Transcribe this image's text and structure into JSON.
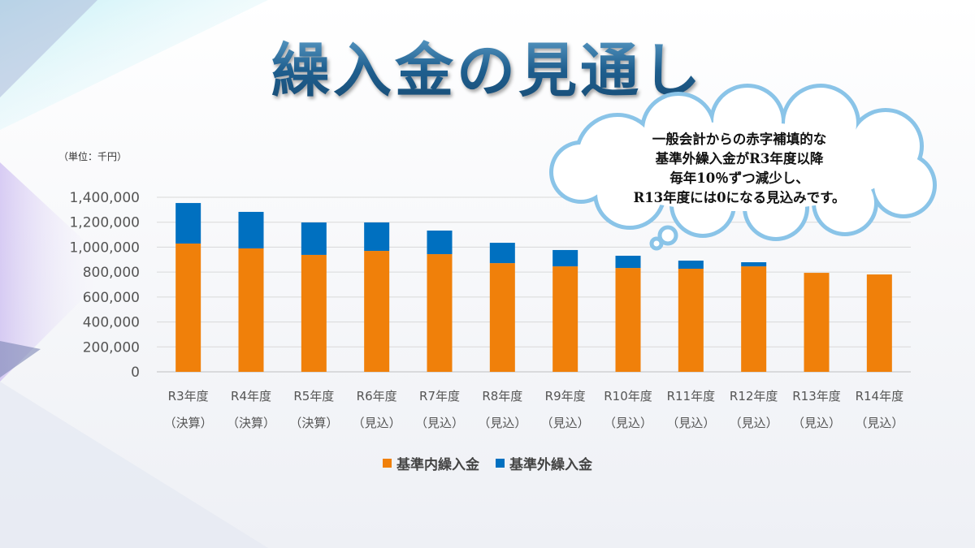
{
  "title": "繰入金の見通し",
  "unit_label": "（単位：千円）",
  "callout": {
    "lines": [
      "一般会計からの赤字補填的な",
      "基準外繰入金がR3年度以降",
      "毎年10％ずつ減少し、",
      "R13年度には0になる見込みです。"
    ]
  },
  "colors": {
    "inner": "#f0800a",
    "outer": "#0070c0",
    "cloud_stroke": "#8ac4e8",
    "title": "#1f5f8f"
  },
  "chart_data": {
    "type": "bar",
    "stacked": true,
    "categories": [
      "R3年度",
      "R4年度",
      "R5年度",
      "R6年度",
      "R7年度",
      "R8年度",
      "R9年度",
      "R10年度",
      "R11年度",
      "R12年度",
      "R13年度",
      "R14年度"
    ],
    "category_sublabels": [
      "（決算）",
      "（決算）",
      "（決算）",
      "（見込）",
      "（見込）",
      "（見込）",
      "（見込）",
      "（見込）",
      "（見込）",
      "（見込）",
      "（見込）",
      "（見込）"
    ],
    "series": [
      {
        "name": "基準内繰入金",
        "color": "#f0800a",
        "values": [
          1029000,
          990000,
          938000,
          970000,
          944000,
          872000,
          846000,
          833000,
          827000,
          846000,
          794000,
          781000
        ]
      },
      {
        "name": "基準外繰入金",
        "color": "#0070c0",
        "values": [
          325000,
          293000,
          260000,
          228000,
          189000,
          163000,
          131000,
          98000,
          65000,
          33000,
          0,
          0
        ]
      }
    ],
    "ylim": [
      0,
      1400000
    ],
    "yticks": [
      0,
      200000,
      400000,
      600000,
      800000,
      1000000,
      1200000,
      1400000
    ],
    "ytick_labels": [
      "0",
      "200,000",
      "400,000",
      "600,000",
      "800,000",
      "1,000,000",
      "1,200,000",
      "1,400,000"
    ],
    "grid": true,
    "legend": "bottom",
    "ylabel": "（単位：千円）"
  }
}
